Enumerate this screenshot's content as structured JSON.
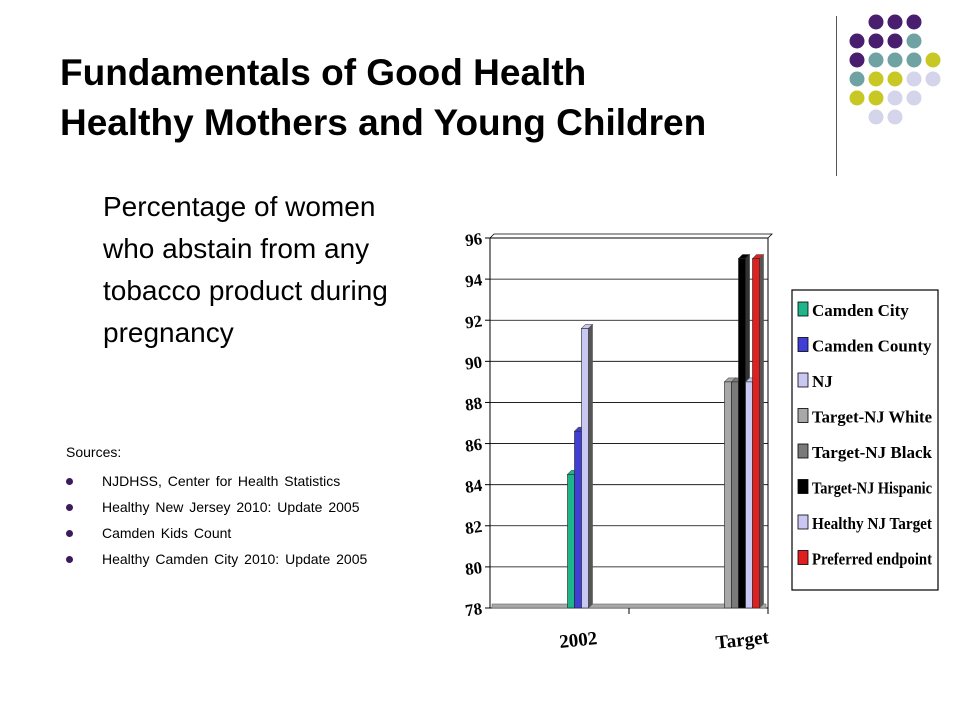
{
  "title": {
    "line1": "Fundamentals of Good Health",
    "line2": "Healthy Mothers and Young Children"
  },
  "description": "Percentage of women who abstain from any tobacco product during pregnancy",
  "sources": {
    "heading": "Sources:",
    "items": [
      "NJDHSS, Center for Health Statistics",
      "Healthy New Jersey 2010:  Update 2005",
      "Camden Kids Count",
      "Healthy Camden City 2010:  Update 2005"
    ]
  },
  "decor": {
    "colors": [
      "#4a1e6e",
      "#6fa3a3",
      "#c8c825",
      "#d4d4ea"
    ]
  },
  "chart_data": {
    "type": "bar",
    "categories": [
      "2002",
      "Target"
    ],
    "ylim": [
      78,
      96
    ],
    "yticks": [
      "78",
      "80",
      "82",
      "84",
      "86",
      "88",
      "90",
      "92",
      "94",
      "96"
    ],
    "grid": true,
    "legend_position": "right",
    "series": [
      {
        "name": "Camden City",
        "color": "#1fb58a",
        "values": [
          84.5,
          null
        ]
      },
      {
        "name": "Camden County",
        "color": "#3f3fd6",
        "values": [
          86.6,
          null
        ]
      },
      {
        "name": "NJ",
        "color": "#c8c8f2",
        "values": [
          91.6,
          null
        ]
      },
      {
        "name": "Target-NJ White",
        "color": "#a8a8a8",
        "values": [
          null,
          89
        ]
      },
      {
        "name": "Target-NJ Black",
        "color": "#7a7a7a",
        "values": [
          null,
          89
        ]
      },
      {
        "name": "Target-NJ Hispanic",
        "color": "#000000",
        "values": [
          null,
          95
        ]
      },
      {
        "name": "Healthy NJ Target",
        "color": "#c8c8f2",
        "values": [
          null,
          89
        ]
      },
      {
        "name": "Preferred endpoint",
        "color": "#e02020",
        "values": [
          null,
          95
        ]
      }
    ]
  }
}
